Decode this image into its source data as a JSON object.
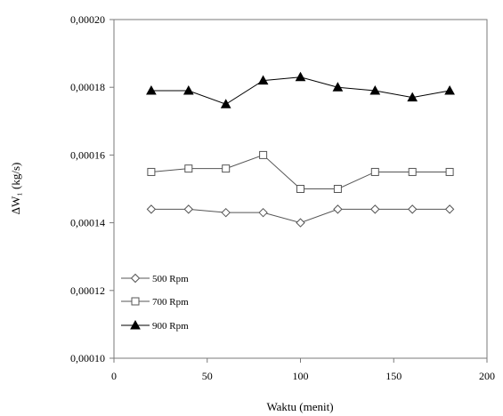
{
  "chart_data": {
    "type": "line",
    "xlabel": "Waktu (menit)",
    "ylabel": "ΔW₁ (kg/s)",
    "xlim": [
      0,
      200
    ],
    "ylim": [
      0.0001,
      0.0002
    ],
    "x_ticks": [
      0,
      50,
      100,
      150,
      200
    ],
    "x_tick_labels": [
      "0",
      "50",
      "100",
      "150",
      "200"
    ],
    "y_ticks": [
      0.0001,
      0.00012,
      0.00014,
      0.00016,
      0.00018,
      0.0002
    ],
    "y_tick_labels": [
      "0,00010",
      "0,00012",
      "0,00014",
      "0,00016",
      "0,00018",
      "0,00020"
    ],
    "grid": false,
    "legend_position": "bottom-left",
    "x": [
      20,
      40,
      60,
      80,
      100,
      120,
      140,
      160,
      180
    ],
    "series": [
      {
        "name": "500 Rpm",
        "marker": "diamond-open",
        "color": "#555555",
        "values": [
          0.000144,
          0.000144,
          0.000143,
          0.000143,
          0.00014,
          0.000144,
          0.000144,
          0.000144,
          0.000144
        ]
      },
      {
        "name": "700 Rpm",
        "marker": "square-open",
        "color": "#555555",
        "values": [
          0.000155,
          0.000156,
          0.000156,
          0.00016,
          0.00015,
          0.00015,
          0.000155,
          0.000155,
          0.000155
        ]
      },
      {
        "name": "900 Rpm",
        "marker": "triangle-filled",
        "color": "#000000",
        "values": [
          0.000179,
          0.000179,
          0.000175,
          0.000182,
          0.000183,
          0.00018,
          0.000179,
          0.000177,
          0.000179
        ]
      }
    ]
  }
}
